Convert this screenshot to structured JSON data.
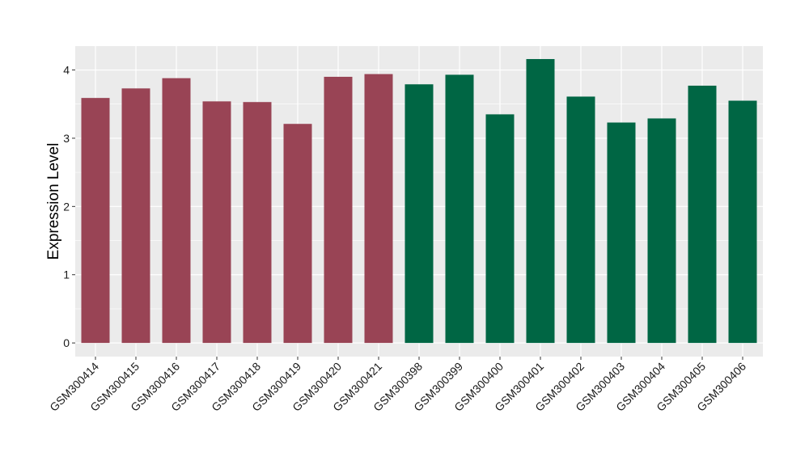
{
  "chart_data": {
    "type": "bar",
    "title": "",
    "xlabel": "",
    "ylabel": "Expression Level",
    "ylim": [
      -0.2,
      4.35
    ],
    "yticks": [
      0,
      1,
      2,
      3,
      4
    ],
    "grid": true,
    "background": "#ebebeb",
    "gridline_color": "#ffffff",
    "categories": [
      "GSM300414",
      "GSM300415",
      "GSM300416",
      "GSM300417",
      "GSM300418",
      "GSM300419",
      "GSM300420",
      "GSM300421",
      "GSM300398",
      "GSM300399",
      "GSM300400",
      "GSM300401",
      "GSM300402",
      "GSM300403",
      "GSM300404",
      "GSM300405",
      "GSM300406"
    ],
    "values": [
      3.59,
      3.73,
      3.88,
      3.54,
      3.53,
      3.21,
      3.9,
      3.94,
      3.79,
      3.93,
      3.35,
      4.16,
      3.61,
      3.23,
      3.29,
      3.77,
      3.55
    ],
    "groups": [
      0,
      0,
      0,
      0,
      0,
      0,
      0,
      0,
      1,
      1,
      1,
      1,
      1,
      1,
      1,
      1,
      1
    ],
    "group_colors": [
      "#994455",
      "#006644"
    ]
  }
}
